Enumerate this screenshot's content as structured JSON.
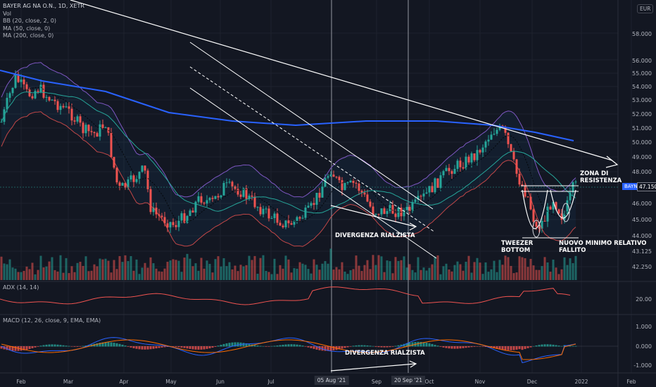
{
  "header": {
    "title": "BAYER AG NA O.N., 1D, XETR",
    "indicators": [
      "Vol",
      "BB (20, close, 2, 0)",
      "MA (50, close, 0)",
      "MA (200, close, 0)"
    ],
    "currency": "EUR"
  },
  "price_axis": {
    "labels": [
      "58.000",
      "56.000",
      "55.000",
      "54.000",
      "53.000",
      "52.000",
      "51.000",
      "50.000",
      "49.000",
      "48.000",
      "46.000",
      "45.000",
      "44.000",
      "43.125",
      "42.250"
    ]
  },
  "last_price": {
    "ticker": "BAYN",
    "value": "47.150"
  },
  "adx": {
    "label": "ADX (14, 14)",
    "axis_labels": [
      "20.00"
    ]
  },
  "macd": {
    "label": "MACD (12, 26, close, 9, EMA, EMA)",
    "axis_labels": [
      "1.000",
      "0.000",
      "-1.000"
    ]
  },
  "time_axis": {
    "labels": [
      "Feb",
      "Mar",
      "Apr",
      "May",
      "Jun",
      "Jul",
      "Sep",
      "Oct",
      "Nov",
      "Dec",
      "2022",
      "Feb"
    ],
    "highlighted": [
      "05 Aug '21",
      "20 Sep '21"
    ]
  },
  "annotations": {
    "divergence_price": "DIVERGENZA RIALZISTA",
    "divergence_macd": "DIVERGENZA RIALZISTA",
    "resistance": "ZONA DI\nRESISTENZA",
    "tweezer": "TWEEZER\nBOTTOM",
    "failed_low": "NUOVO MINIMO RELATIVO\nFALLITO"
  },
  "colors": {
    "background": "#131722",
    "up": "#26a69a",
    "down": "#ef5350",
    "bollinger": "#7e57c2",
    "ma50": "#26a69a",
    "ma200": "#2962ff",
    "adx": "#ef5350",
    "macd": "#2962ff",
    "signal": "#ff6d00"
  }
}
